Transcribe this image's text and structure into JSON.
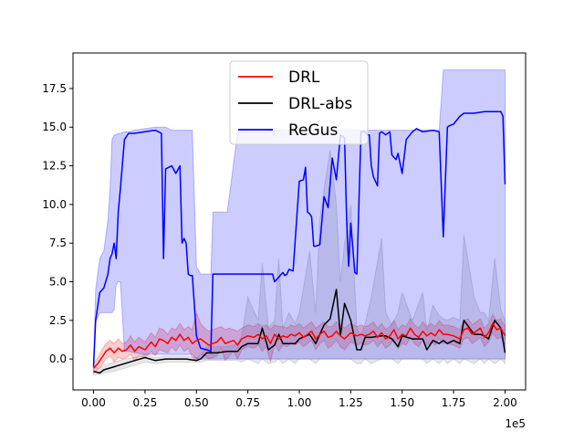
{
  "chart_data": {
    "type": "line",
    "title": "",
    "xlabel": "",
    "ylabel": "",
    "x_offset_label": "1e5",
    "xlim": [
      -0.1,
      2.1
    ],
    "ylim": [
      -2.0,
      19.8
    ],
    "xticks": [
      0.0,
      0.25,
      0.5,
      0.75,
      1.0,
      1.25,
      1.5,
      1.75,
      2.0
    ],
    "xtick_labels": [
      "0.00",
      "0.25",
      "0.50",
      "0.75",
      "1.00",
      "1.25",
      "1.50",
      "1.75",
      "2.00"
    ],
    "yticks": [
      0.0,
      2.5,
      5.0,
      7.5,
      10.0,
      12.5,
      15.0,
      17.5
    ],
    "ytick_labels": [
      "0.0",
      "2.5",
      "5.0",
      "7.5",
      "10.0",
      "12.5",
      "15.0",
      "17.5"
    ],
    "grid": false,
    "legend_position": "upper center",
    "series": [
      {
        "name": "DRL",
        "color": "#ff0000",
        "band_color": "#ff0000",
        "x": [
          0.0,
          0.02,
          0.04,
          0.06,
          0.08,
          0.1,
          0.12,
          0.14,
          0.16,
          0.18,
          0.2,
          0.22,
          0.25,
          0.28,
          0.3,
          0.32,
          0.34,
          0.36,
          0.38,
          0.4,
          0.42,
          0.44,
          0.46,
          0.48,
          0.5,
          0.52,
          0.54,
          0.56,
          0.58,
          0.6,
          0.62,
          0.64,
          0.66,
          0.68,
          0.7,
          0.72,
          0.75,
          0.78,
          0.8,
          0.82,
          0.84,
          0.86,
          0.88,
          0.9,
          0.92,
          0.94,
          0.96,
          0.98,
          1.0,
          1.02,
          1.04,
          1.06,
          1.08,
          1.1,
          1.12,
          1.14,
          1.16,
          1.18,
          1.2,
          1.22,
          1.25,
          1.28,
          1.3,
          1.32,
          1.34,
          1.36,
          1.38,
          1.4,
          1.42,
          1.44,
          1.46,
          1.48,
          1.5,
          1.52,
          1.54,
          1.56,
          1.58,
          1.6,
          1.62,
          1.64,
          1.66,
          1.68,
          1.7,
          1.72,
          1.75,
          1.78,
          1.8,
          1.82,
          1.84,
          1.86,
          1.88,
          1.9,
          1.92,
          1.94,
          1.96,
          1.98,
          2.0
        ],
        "y": [
          -0.6,
          -0.3,
          0.1,
          0.5,
          0.7,
          0.4,
          0.7,
          0.5,
          0.6,
          0.9,
          0.5,
          0.8,
          0.6,
          1.1,
          0.8,
          1.3,
          1.2,
          1.0,
          1.4,
          1.2,
          1.6,
          1.2,
          1.4,
          1.0,
          1.2,
          1.3,
          1.1,
          0.9,
          1.0,
          1.1,
          1.4,
          1.0,
          1.1,
          1.2,
          0.9,
          1.3,
          1.5,
          1.4,
          1.6,
          1.3,
          1.5,
          1.0,
          1.6,
          1.3,
          1.5,
          1.4,
          1.6,
          1.5,
          1.7,
          1.4,
          1.6,
          1.8,
          1.3,
          1.6,
          1.8,
          1.4,
          1.5,
          1.8,
          1.5,
          1.3,
          1.7,
          1.5,
          1.6,
          1.5,
          1.6,
          1.8,
          1.4,
          1.7,
          1.3,
          1.5,
          1.9,
          1.3,
          1.6,
          1.5,
          2.0,
          1.6,
          1.4,
          1.8,
          1.5,
          1.7,
          1.5,
          1.9,
          1.6,
          1.6,
          1.5,
          1.3,
          1.9,
          2.0,
          1.6,
          1.8,
          2.0,
          1.4,
          1.7,
          2.3,
          1.9,
          2.0,
          1.5
        ],
        "lower": [
          -0.9,
          -0.7,
          -0.4,
          0.0,
          0.2,
          -0.2,
          0.1,
          0.0,
          0.1,
          0.3,
          -0.1,
          0.2,
          0.1,
          0.5,
          0.2,
          0.6,
          0.5,
          0.4,
          0.8,
          0.5,
          0.9,
          0.5,
          0.7,
          0.1,
          -0.1,
          0.3,
          0.2,
          0.0,
          0.1,
          0.2,
          0.7,
          -0.1,
          0.2,
          0.5,
          0.0,
          0.6,
          0.8,
          0.7,
          0.9,
          0.5,
          0.8,
          -0.2,
          1.0,
          0.5,
          0.9,
          0.8,
          1.0,
          0.9,
          1.1,
          0.8,
          1.0,
          1.2,
          0.6,
          1.0,
          1.2,
          0.7,
          0.9,
          1.2,
          0.8,
          0.6,
          1.1,
          0.9,
          1.0,
          0.9,
          1.0,
          1.2,
          0.8,
          1.1,
          0.7,
          0.9,
          1.3,
          0.7,
          1.0,
          0.9,
          1.4,
          1.0,
          0.8,
          1.2,
          0.9,
          1.1,
          0.9,
          1.3,
          1.0,
          1.0,
          0.9,
          0.7,
          1.3,
          1.4,
          1.0,
          1.2,
          1.4,
          0.8,
          1.1,
          1.7,
          1.3,
          1.4,
          0.9
        ],
        "upper": [
          -0.3,
          0.1,
          0.6,
          1.0,
          1.2,
          1.0,
          1.3,
          1.0,
          1.1,
          1.5,
          1.1,
          1.4,
          1.1,
          1.7,
          1.4,
          2.0,
          1.9,
          1.6,
          2.0,
          1.9,
          2.3,
          1.9,
          2.1,
          1.9,
          3.0,
          2.3,
          2.0,
          1.8,
          1.9,
          2.0,
          2.1,
          1.9,
          2.0,
          1.9,
          1.8,
          2.0,
          2.2,
          2.1,
          2.3,
          2.1,
          2.2,
          1.9,
          2.2,
          2.1,
          2.1,
          2.0,
          2.2,
          2.1,
          2.3,
          2.0,
          2.2,
          2.4,
          2.0,
          2.2,
          2.4,
          2.1,
          2.1,
          2.4,
          2.2,
          2.0,
          2.3,
          2.1,
          2.2,
          2.1,
          2.2,
          2.4,
          2.0,
          2.3,
          1.9,
          2.1,
          2.5,
          1.9,
          2.2,
          2.1,
          2.6,
          2.2,
          2.0,
          2.4,
          2.1,
          2.3,
          2.1,
          2.5,
          2.2,
          2.2,
          2.1,
          1.9,
          2.5,
          2.6,
          2.2,
          2.4,
          2.6,
          2.0,
          2.3,
          2.9,
          2.5,
          2.6,
          2.1
        ]
      },
      {
        "name": "DRL-abs",
        "color": "#000000",
        "band_color": "#808080",
        "x": [
          0.0,
          0.03,
          0.05,
          0.1,
          0.15,
          0.2,
          0.25,
          0.3,
          0.35,
          0.4,
          0.45,
          0.5,
          0.52,
          0.55,
          0.6,
          0.65,
          0.7,
          0.72,
          0.75,
          0.8,
          0.82,
          0.85,
          0.88,
          0.9,
          0.92,
          0.95,
          0.98,
          1.0,
          1.05,
          1.08,
          1.1,
          1.12,
          1.15,
          1.18,
          1.2,
          1.22,
          1.25,
          1.28,
          1.3,
          1.32,
          1.35,
          1.4,
          1.42,
          1.45,
          1.48,
          1.5,
          1.55,
          1.6,
          1.62,
          1.65,
          1.68,
          1.7,
          1.72,
          1.75,
          1.78,
          1.8,
          1.85,
          1.88,
          1.9,
          1.92,
          1.95,
          1.98,
          2.0
        ],
        "y": [
          -0.8,
          -0.9,
          -0.7,
          -0.5,
          -0.3,
          -0.1,
          0.1,
          -0.1,
          0.0,
          0.0,
          0.0,
          -0.1,
          0.0,
          0.4,
          0.4,
          0.5,
          0.5,
          0.8,
          1.0,
          1.0,
          2.0,
          0.6,
          0.9,
          1.6,
          1.0,
          1.0,
          1.0,
          1.3,
          1.6,
          1.0,
          1.6,
          2.2,
          2.6,
          4.5,
          1.5,
          3.6,
          2.5,
          0.6,
          0.6,
          1.4,
          1.4,
          1.5,
          1.5,
          1.3,
          0.8,
          1.5,
          1.3,
          1.3,
          0.6,
          1.2,
          1.0,
          1.2,
          1.0,
          1.2,
          1.0,
          2.5,
          1.6,
          1.6,
          1.5,
          1.3,
          2.5,
          2.0,
          0.4
        ],
        "lower": [
          -1.0,
          -1.0,
          -0.9,
          -0.8,
          -0.6,
          -0.4,
          -0.2,
          -0.3,
          -0.2,
          -0.2,
          -0.2,
          -0.2,
          -0.2,
          -0.1,
          -0.1,
          -0.1,
          -0.1,
          -0.2,
          0.0,
          -0.3,
          0.0,
          -0.3,
          -0.2,
          0.0,
          -0.3,
          0.0,
          -0.3,
          0.0,
          0.0,
          -0.3,
          0.0,
          0.0,
          0.0,
          0.0,
          0.0,
          0.0,
          0.0,
          -0.3,
          -0.3,
          0.0,
          -0.3,
          0.0,
          0.0,
          0.0,
          -0.3,
          0.0,
          0.0,
          0.0,
          -0.3,
          0.0,
          -0.3,
          0.0,
          -0.3,
          0.0,
          -0.3,
          0.0,
          -0.3,
          0.0,
          -0.3,
          0.0,
          -0.3,
          0.0,
          -0.3
        ],
        "upper": [
          -0.5,
          -0.6,
          -0.4,
          -0.2,
          0.0,
          0.1,
          0.3,
          0.1,
          0.2,
          0.2,
          0.2,
          0.1,
          0.2,
          0.8,
          0.8,
          0.8,
          1.0,
          1.5,
          4.0,
          2.5,
          6.2,
          2.0,
          2.5,
          6.5,
          2.0,
          3.0,
          2.3,
          3.0,
          7.0,
          3.0,
          9.0,
          11.0,
          13.5,
          10.0,
          5.0,
          7.5,
          10.0,
          2.0,
          1.5,
          2.3,
          4.0,
          7.8,
          3.0,
          2.2,
          3.0,
          4.3,
          2.5,
          4.3,
          1.8,
          3.5,
          2.8,
          2.6,
          2.5,
          2.7,
          2.5,
          8.0,
          4.0,
          3.0,
          3.0,
          2.5,
          6.5,
          3.2,
          2.5
        ]
      },
      {
        "name": "ReGus",
        "color": "#0000ff",
        "band_color": "#0000ff",
        "x": [
          0.0,
          0.01,
          0.03,
          0.05,
          0.07,
          0.08,
          0.09,
          0.1,
          0.11,
          0.12,
          0.13,
          0.15,
          0.17,
          0.2,
          0.25,
          0.3,
          0.33,
          0.34,
          0.35,
          0.38,
          0.4,
          0.42,
          0.43,
          0.44,
          0.45,
          0.46,
          0.47,
          0.48,
          0.5,
          0.52,
          0.55,
          0.57,
          0.58,
          0.6,
          0.65,
          0.7,
          0.75,
          0.8,
          0.85,
          0.87,
          0.88,
          0.9,
          0.92,
          0.93,
          0.94,
          0.95,
          0.97,
          1.0,
          1.02,
          1.03,
          1.04,
          1.05,
          1.06,
          1.07,
          1.08,
          1.1,
          1.12,
          1.14,
          1.16,
          1.18,
          1.2,
          1.22,
          1.23,
          1.24,
          1.25,
          1.27,
          1.28,
          1.3,
          1.32,
          1.33,
          1.34,
          1.35,
          1.36,
          1.38,
          1.39,
          1.4,
          1.42,
          1.44,
          1.45,
          1.47,
          1.48,
          1.5,
          1.52,
          1.55,
          1.57,
          1.6,
          1.65,
          1.68,
          1.7,
          1.72,
          1.73,
          1.75,
          1.78,
          1.8,
          1.85,
          1.9,
          1.95,
          1.98,
          1.99,
          2.0
        ],
        "y": [
          -0.5,
          2.5,
          4.3,
          4.6,
          5.5,
          6.5,
          6.8,
          7.5,
          6.5,
          9.5,
          11.0,
          14.2,
          14.6,
          14.6,
          14.7,
          14.8,
          14.6,
          6.5,
          12.3,
          12.5,
          12.0,
          12.5,
          7.5,
          7.8,
          7.5,
          5.5,
          5.4,
          5.4,
          1.5,
          0.7,
          0.6,
          0.5,
          5.5,
          5.5,
          5.5,
          5.5,
          5.5,
          5.5,
          5.5,
          5.5,
          5.0,
          5.3,
          5.6,
          5.4,
          5.5,
          5.8,
          5.7,
          11.5,
          11.6,
          12.4,
          9.5,
          9.4,
          9.2,
          7.3,
          7.3,
          7.4,
          10.5,
          9.8,
          13.0,
          11.6,
          14.5,
          14.3,
          9.0,
          6.0,
          8.8,
          5.6,
          5.5,
          14.7,
          14.7,
          14.5,
          14.5,
          12.5,
          11.8,
          11.2,
          14.6,
          14.7,
          14.5,
          14.7,
          13.2,
          12.9,
          13.3,
          12.0,
          14.2,
          14.7,
          14.9,
          14.7,
          14.8,
          14.7,
          7.9,
          15.0,
          15.1,
          15.2,
          15.7,
          15.9,
          15.9,
          16.0,
          16.0,
          16.0,
          15.7,
          11.3
        ],
        "lower": [
          -0.5,
          2.4,
          3.0,
          3.0,
          3.0,
          3.0,
          3.0,
          3.2,
          4.8,
          5.0,
          5.0,
          0.5,
          0.5,
          0.4,
          0.3,
          0.3,
          0.3,
          0.3,
          0.3,
          0.3,
          0.3,
          0.3,
          0.3,
          0.3,
          0.3,
          0.3,
          0.3,
          0.3,
          0.0,
          0.0,
          0.0,
          0.0,
          0.0,
          0.0,
          0.0,
          0.0,
          0.0,
          0.0,
          0.0,
          0.0,
          0.0,
          0.0,
          0.0,
          0.0,
          0.0,
          0.0,
          0.0,
          0.0,
          0.0,
          0.0,
          0.0,
          0.0,
          0.0,
          0.0,
          0.0,
          0.0,
          0.0,
          0.0,
          0.0,
          0.0,
          0.0,
          0.0,
          0.0,
          0.0,
          0.0,
          0.0,
          0.0,
          0.0,
          0.0,
          0.0,
          0.0,
          0.0,
          0.0,
          0.0,
          0.0,
          0.0,
          0.0,
          0.0,
          0.0,
          0.0,
          0.0,
          0.0,
          0.0,
          0.0,
          0.0,
          0.0,
          0.0,
          0.0,
          0.0,
          0.0,
          0.0,
          0.0,
          0.0,
          0.0,
          0.0,
          0.0,
          0.0,
          0.0,
          0.0,
          0.0
        ],
        "upper": [
          -0.3,
          4.5,
          6.5,
          7.0,
          9.0,
          11.0,
          14.2,
          14.5,
          14.5,
          14.6,
          14.6,
          14.7,
          14.7,
          14.8,
          14.9,
          15.0,
          15.0,
          15.0,
          15.0,
          14.8,
          14.8,
          14.8,
          14.8,
          14.8,
          14.8,
          14.8,
          14.8,
          14.8,
          6.0,
          5.5,
          5.5,
          5.5,
          9.5,
          9.5,
          9.5,
          14.7,
          14.7,
          14.7,
          14.7,
          14.8,
          14.8,
          14.8,
          14.8,
          14.8,
          14.8,
          14.8,
          14.8,
          14.8,
          14.8,
          14.8,
          14.8,
          14.8,
          14.8,
          14.8,
          14.8,
          14.8,
          14.8,
          14.8,
          14.8,
          14.8,
          14.8,
          14.8,
          14.8,
          14.8,
          14.8,
          14.8,
          14.8,
          14.8,
          14.8,
          14.8,
          14.8,
          14.8,
          14.8,
          14.8,
          14.8,
          14.8,
          14.8,
          14.8,
          14.8,
          14.8,
          14.8,
          14.8,
          14.8,
          14.8,
          14.8,
          14.8,
          14.8,
          14.8,
          18.7,
          18.7,
          18.7,
          18.7,
          18.7,
          18.7,
          18.7,
          18.7,
          18.7,
          18.7,
          18.7,
          18.7
        ]
      }
    ]
  }
}
